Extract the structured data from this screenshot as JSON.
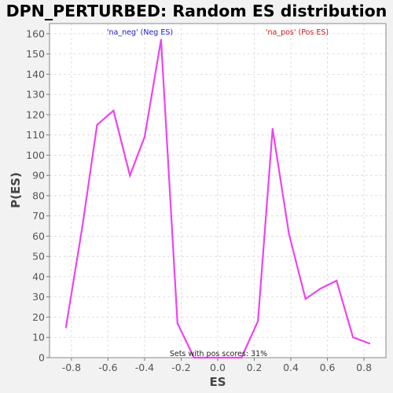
{
  "chart_data": {
    "type": "line",
    "title": "DPN_PERTURBED: Random ES distribution",
    "xlabel": "ES",
    "ylabel": "P(ES)",
    "xlim": [
      -0.92,
      0.92
    ],
    "ylim": [
      0,
      165
    ],
    "x_ticks": [
      "-0.8",
      "-0.6",
      "-0.4",
      "-0.2",
      "0.0",
      "0.2",
      "0.4",
      "0.6",
      "0.8"
    ],
    "y_ticks": [
      "0",
      "10",
      "20",
      "30",
      "40",
      "50",
      "60",
      "70",
      "80",
      "90",
      "100",
      "110",
      "120",
      "130",
      "140",
      "150",
      "160"
    ],
    "grid": true,
    "legend": [
      {
        "text": "'na_neg' (Neg ES)",
        "color": "#1a1acc"
      },
      {
        "text": "'na_pos' (Pos ES)",
        "color": "#cc1a1a"
      }
    ],
    "annotation": "Sets with pos scores: 31%",
    "series": [
      {
        "color": "#ee44ee",
        "x": [
          -0.83,
          -0.74,
          -0.66,
          -0.57,
          -0.48,
          -0.4,
          -0.31,
          -0.22,
          -0.13,
          -0.04,
          0.04,
          0.13,
          0.22,
          0.3,
          0.39,
          0.48,
          0.56,
          0.65,
          0.74,
          0.83
        ],
        "y": [
          15,
          65,
          115,
          122,
          90,
          109,
          157,
          17,
          0,
          0,
          0,
          0,
          18,
          113,
          61,
          29,
          34,
          38,
          10,
          7
        ]
      }
    ]
  }
}
